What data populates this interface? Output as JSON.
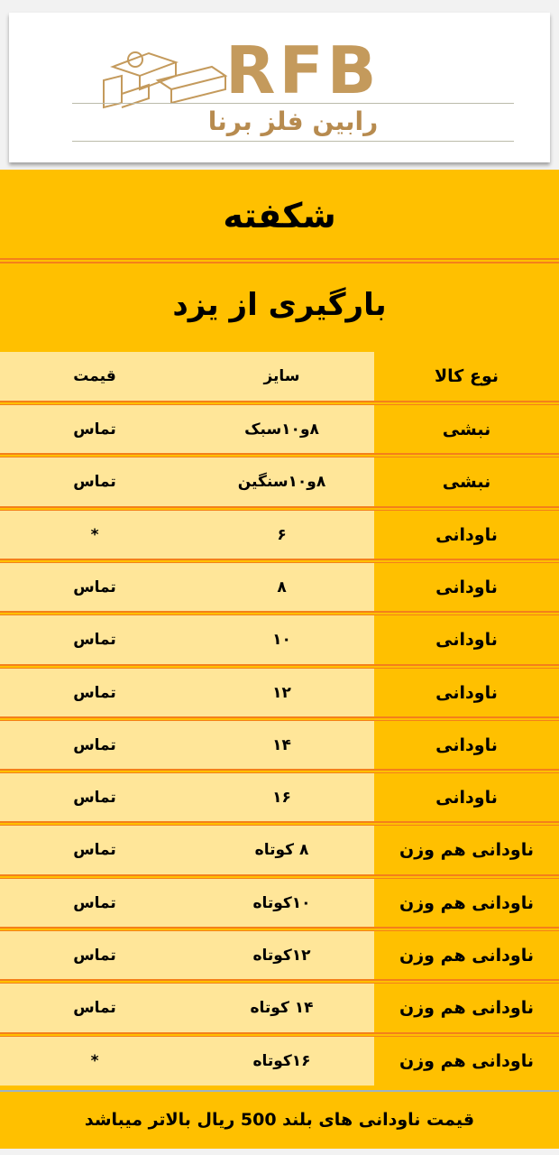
{
  "logo": {
    "letters": "RFB",
    "name_fa": "رابین فلز برنا"
  },
  "title": "شکفته",
  "subtitle": "بارگیری از یزد",
  "table": {
    "headers": [
      "نوع کالا",
      "سایز",
      "قیمت"
    ],
    "rows": [
      {
        "type": "نبشی",
        "size": "۸و۱۰سبک",
        "price": "تماس"
      },
      {
        "type": "نبشی",
        "size": "۸و۱۰سنگین",
        "price": "تماس"
      },
      {
        "type": "ناودانی",
        "size": "۶",
        "price": "*"
      },
      {
        "type": "ناودانی",
        "size": "۸",
        "price": "تماس"
      },
      {
        "type": "ناودانی",
        "size": "۱۰",
        "price": "تماس"
      },
      {
        "type": "ناودانی",
        "size": "۱۲",
        "price": "تماس"
      },
      {
        "type": "ناودانی",
        "size": "۱۴",
        "price": "تماس"
      },
      {
        "type": "ناودانی",
        "size": "۱۶",
        "price": "تماس"
      },
      {
        "type": "ناودانی هم وزن",
        "size": "۸ کوتاه",
        "price": "تماس"
      },
      {
        "type": "ناودانی هم وزن",
        "size": "۱۰کوتاه",
        "price": "تماس"
      },
      {
        "type": "ناودانی هم وزن",
        "size": "۱۲کوتاه",
        "price": "تماس"
      },
      {
        "type": "ناودانی هم وزن",
        "size": "۱۴ کوتاه",
        "price": "تماس"
      },
      {
        "type": "ناودانی هم وزن",
        "size": "۱۶کوتاه",
        "price": "*"
      }
    ]
  },
  "footer": "قیمت ناودانی های بلند 500 ریال بالاتر میباشد",
  "colors": {
    "yellow": "#FFC000",
    "light_yellow": "#FFE699",
    "orange_rule": "#F4801A",
    "logo_gold": "#c49a5c"
  }
}
